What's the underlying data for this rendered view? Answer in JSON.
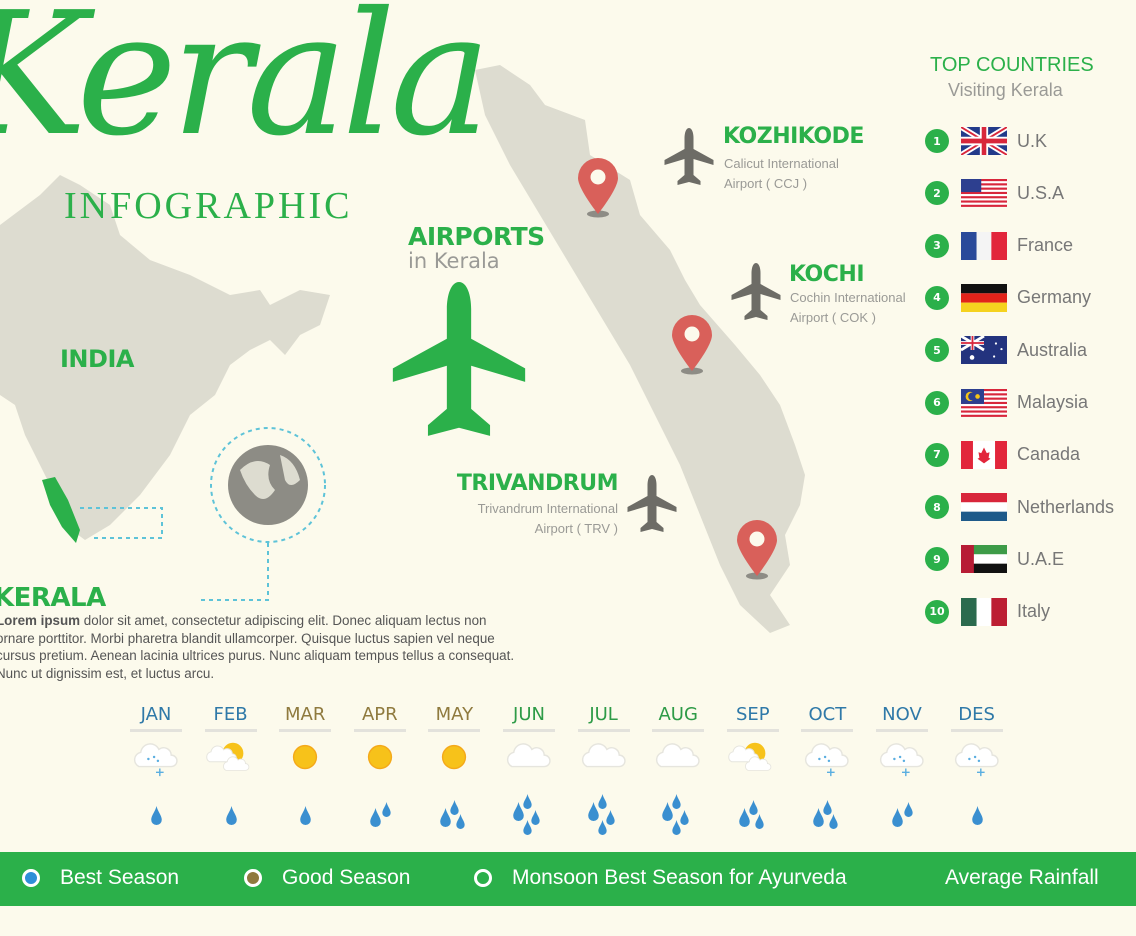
{
  "header": {
    "title": "Kerala",
    "subtitle": "INFOGRAPHIC"
  },
  "map": {
    "india_label": "INDIA",
    "kerala_label": "KERALA",
    "description_bold": "Lorem ipsum",
    "description": " dolor sit amet, consectetur adipiscing elit. Donec aliquam lectus non ornare porttitor. Morbi pharetra blandit ullamcorper. Quisque luctus sapien vel neque cursus pretium. Aenean lacinia ultrices purus. Nunc aliquam tempus tellus a consequat. Nunc ut dignissim est, et luctus arcu."
  },
  "airports": {
    "heading": "AIRPORTS",
    "subheading": "in Kerala",
    "items": [
      {
        "name": "KOZHIKODE",
        "line1": "Calicut International",
        "line2": "Airport ( CCJ )"
      },
      {
        "name": "KOCHI",
        "line1": "Cochin International",
        "line2": "Airport ( COK )"
      },
      {
        "name": "TRIVANDRUM",
        "line1": "Trivandrum International",
        "line2": "Airport ( TRV )"
      }
    ]
  },
  "countries": {
    "heading": "TOP COUNTRIES",
    "subheading": "Visiting Kerala",
    "items": [
      {
        "rank": "1",
        "name": "U.K",
        "flag": "uk"
      },
      {
        "rank": "2",
        "name": "U.S.A",
        "flag": "usa"
      },
      {
        "rank": "3",
        "name": "France",
        "flag": "france"
      },
      {
        "rank": "4",
        "name": "Germany",
        "flag": "germany"
      },
      {
        "rank": "5",
        "name": "Australia",
        "flag": "australia"
      },
      {
        "rank": "6",
        "name": "Malaysia",
        "flag": "malaysia"
      },
      {
        "rank": "7",
        "name": "Canada",
        "flag": "canada"
      },
      {
        "rank": "8",
        "name": "Netherlands",
        "flag": "netherlands"
      },
      {
        "rank": "9",
        "name": "U.A.E",
        "flag": "uae"
      },
      {
        "rank": "10",
        "name": "Italy",
        "flag": "italy"
      }
    ]
  },
  "months": [
    {
      "label": "JAN",
      "season": "best",
      "weather": "snow-cloud",
      "rain_drops": 1
    },
    {
      "label": "FEB",
      "season": "best",
      "weather": "sun-cloud",
      "rain_drops": 1
    },
    {
      "label": "MAR",
      "season": "good",
      "weather": "sun",
      "rain_drops": 1
    },
    {
      "label": "APR",
      "season": "good",
      "weather": "sun",
      "rain_drops": 2
    },
    {
      "label": "MAY",
      "season": "good",
      "weather": "sun",
      "rain_drops": 3
    },
    {
      "label": "JUN",
      "season": "monsoon",
      "weather": "cloud",
      "rain_drops": 4
    },
    {
      "label": "JUL",
      "season": "monsoon",
      "weather": "cloud",
      "rain_drops": 4
    },
    {
      "label": "AUG",
      "season": "monsoon",
      "weather": "cloud",
      "rain_drops": 4
    },
    {
      "label": "SEP",
      "season": "best",
      "weather": "sun-cloud",
      "rain_drops": 3
    },
    {
      "label": "OCT",
      "season": "best",
      "weather": "snow-cloud",
      "rain_drops": 3
    },
    {
      "label": "NOV",
      "season": "best",
      "weather": "snow-cloud",
      "rain_drops": 2
    },
    {
      "label": "DES",
      "season": "best",
      "weather": "snow-cloud",
      "rain_drops": 1
    }
  ],
  "legend": {
    "best": "Best Season",
    "good": "Good Season",
    "monsoon": "Monsoon Best Season for Ayurveda",
    "rainfall": "Average Rainfall"
  },
  "colors": {
    "green": "#2bb04a",
    "best": "#2f79a8",
    "good": "#8f7a3e",
    "monsoon": "#2e9b47",
    "pin": "#d9605a",
    "map": "#dddcd0",
    "drop": "#3a8fd0"
  }
}
